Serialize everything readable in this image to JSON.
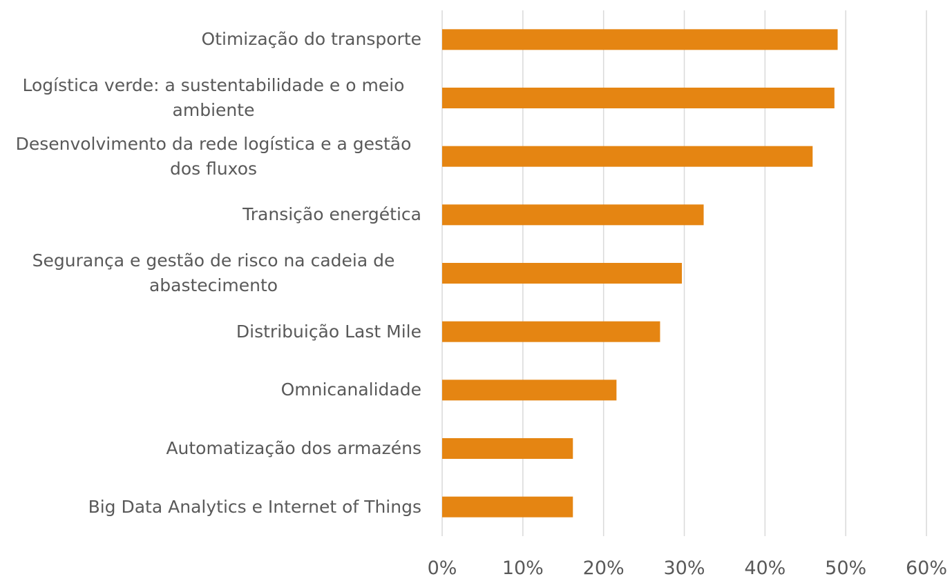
{
  "chart_data": {
    "type": "bar",
    "orientation": "horizontal",
    "categories": [
      "Otimização do transporte",
      "Logística verde: a sustentabilidade e o meio ambiente",
      "Desenvolvimento da rede logística e a gestão dos fluxos",
      "Transição energética",
      "Segurança e gestão de risco na cadeia de abastecimento",
      "Distribuição Last Mile",
      "Omnicanalidade",
      "Automatização dos armazéns",
      "Big Data Analytics e Internet of Things"
    ],
    "values": [
      49.0,
      48.6,
      45.9,
      32.4,
      29.7,
      27.0,
      21.6,
      16.2,
      16.2
    ],
    "color": "#e58512",
    "xlim": [
      0,
      60
    ],
    "xticks": [
      {
        "value": 0,
        "label": "0%"
      },
      {
        "value": 10,
        "label": "10%"
      },
      {
        "value": 20,
        "label": "20%"
      },
      {
        "value": 30,
        "label": "30%"
      },
      {
        "value": 40,
        "label": "40%"
      },
      {
        "value": 50,
        "label": "50%"
      },
      {
        "value": 60,
        "label": "60%"
      }
    ],
    "grid": true
  }
}
